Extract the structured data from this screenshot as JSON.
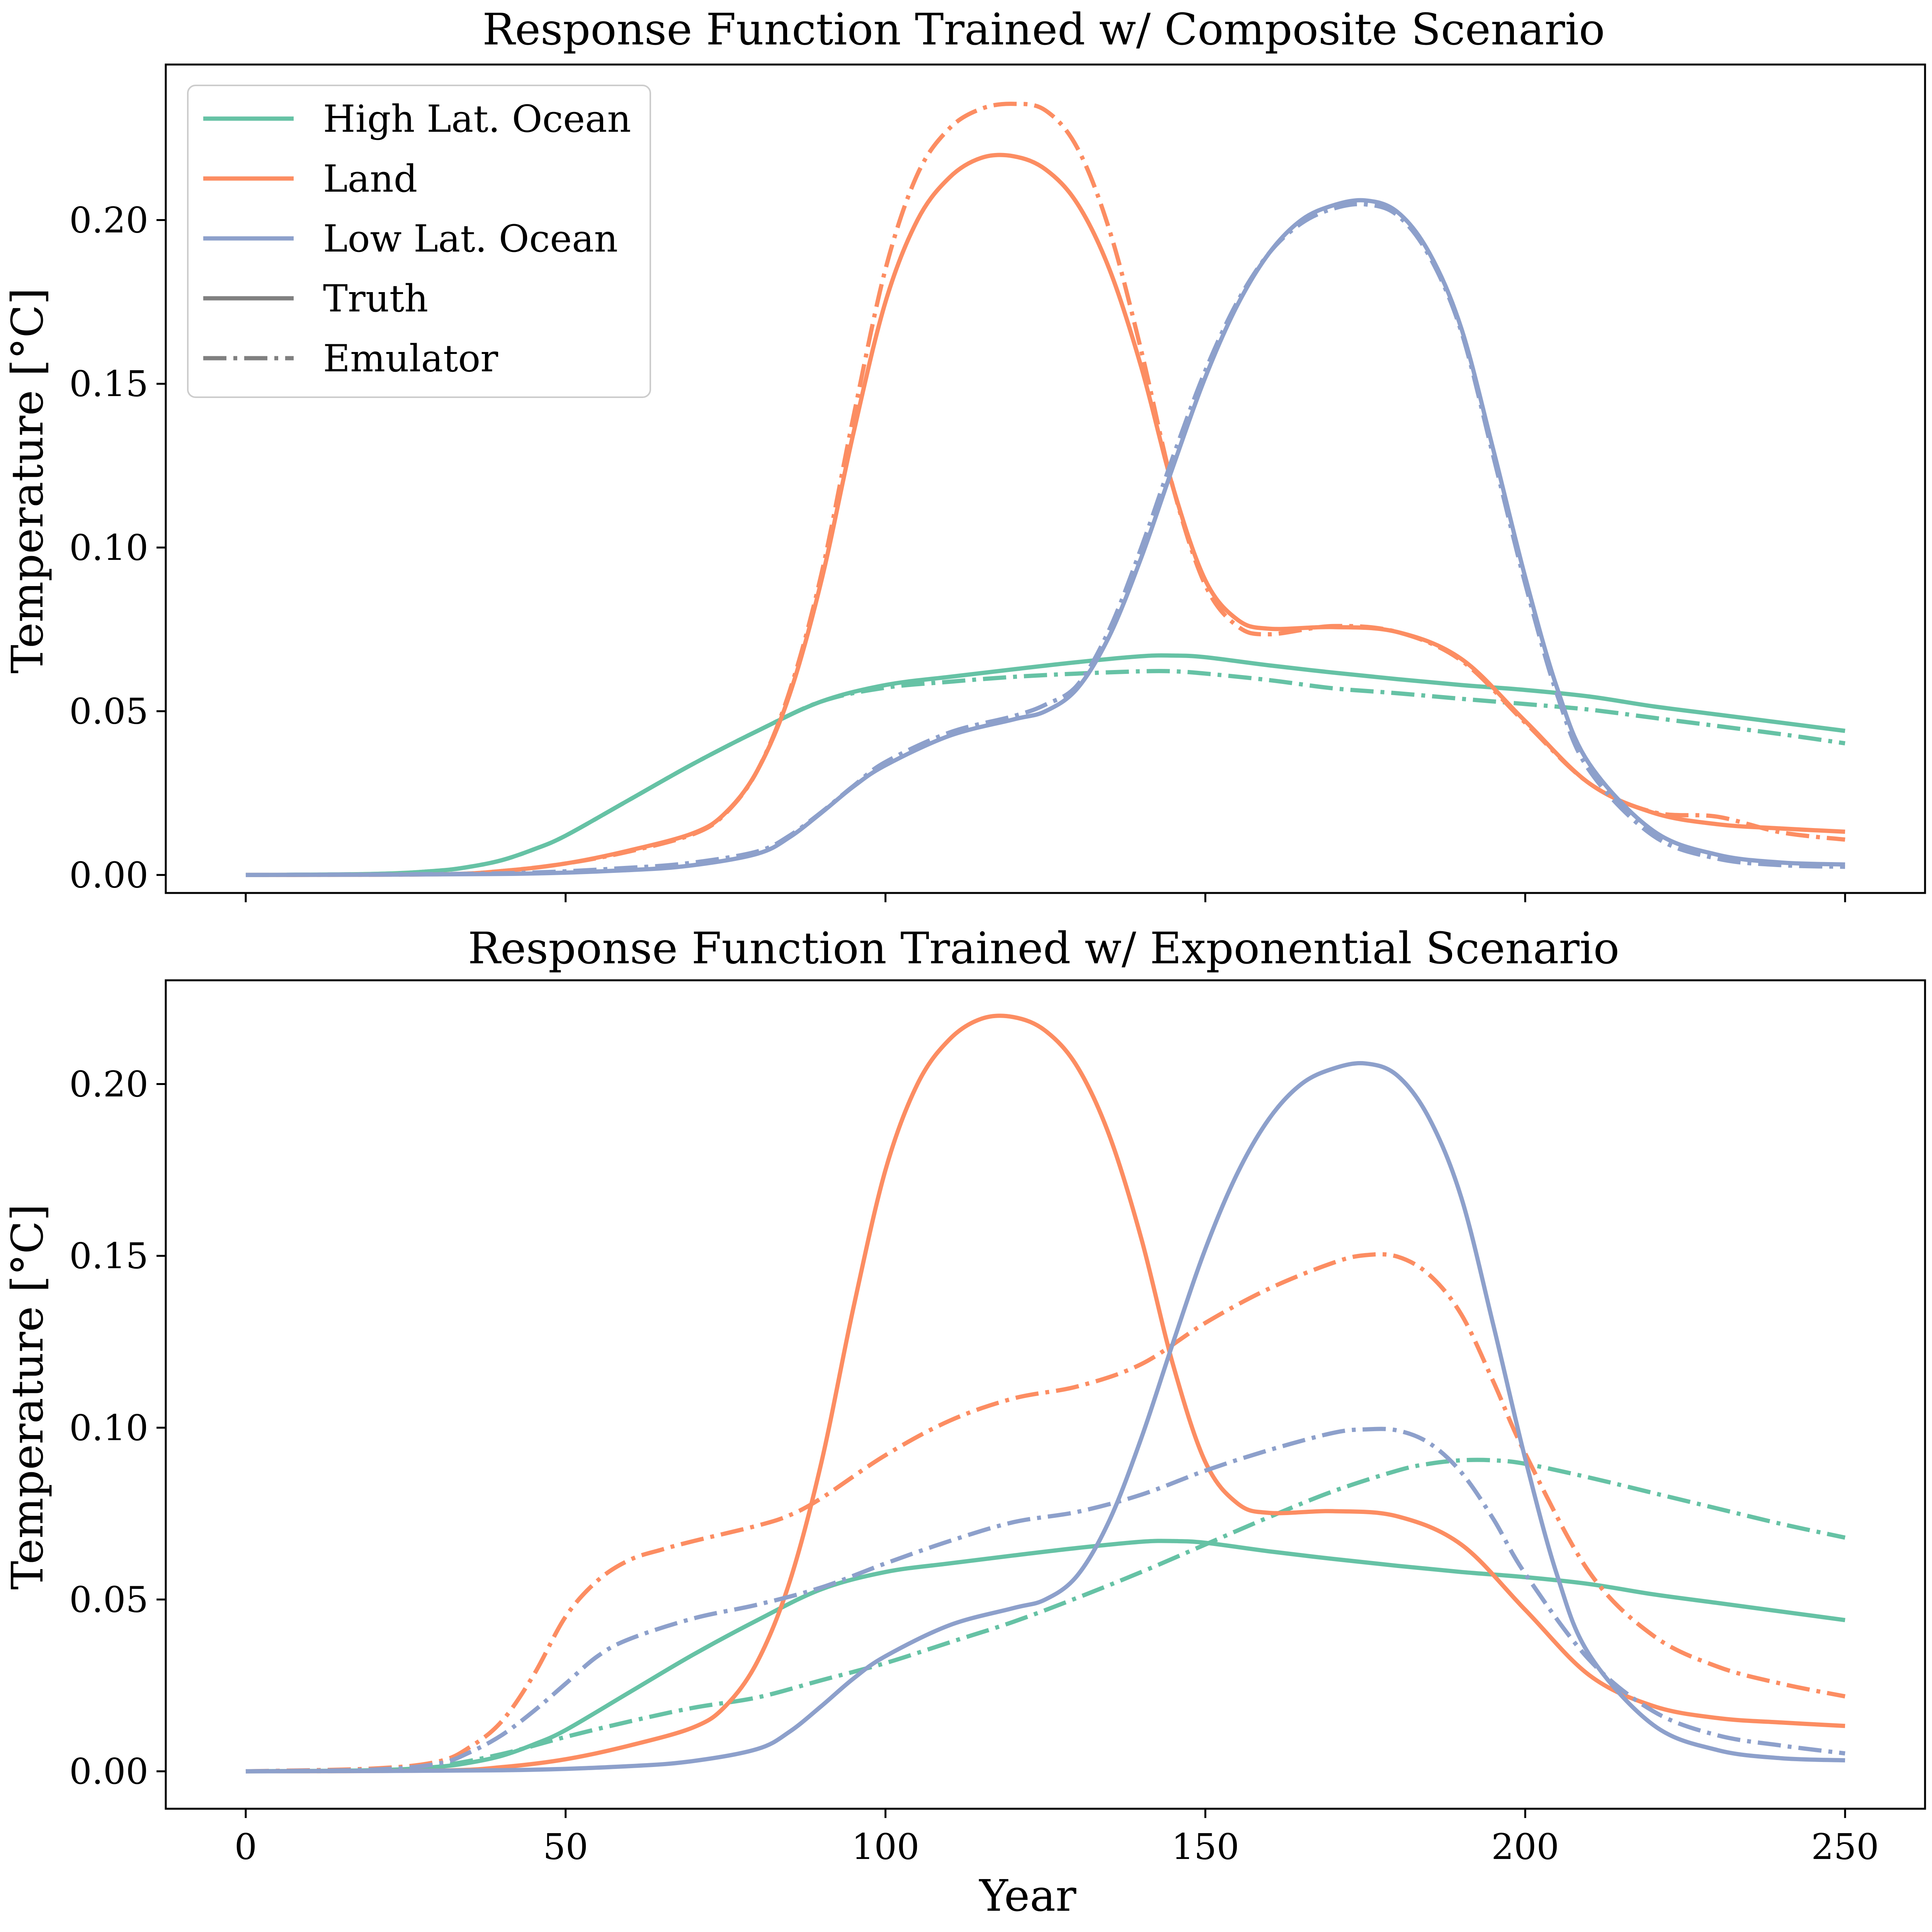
{
  "colors": {
    "high_lat_ocean": "#66c2a5",
    "land": "#fc8d62",
    "low_lat_ocean": "#8da0cb",
    "style_key": "#808080"
  },
  "legend": {
    "location": "upper left of top panel",
    "items": [
      {
        "label": "High Lat. Ocean",
        "color": "#66c2a5",
        "style": "solid"
      },
      {
        "label": "Land",
        "color": "#fc8d62",
        "style": "solid"
      },
      {
        "label": "Low Lat. Ocean",
        "color": "#8da0cb",
        "style": "solid"
      },
      {
        "label": "Truth",
        "color": "#808080",
        "style": "solid"
      },
      {
        "label": "Emulator",
        "color": "#808080",
        "style": "dashdot"
      }
    ]
  },
  "chart_data": [
    {
      "type": "line",
      "title": "Response Function Trained w/ Composite Scenario",
      "xlabel": "",
      "ylabel": "Temperature [°C]",
      "xlim": [
        -12.5,
        262.5
      ],
      "ylim": [
        -0.0055,
        0.2475
      ],
      "xticks": [
        0,
        50,
        100,
        150,
        200,
        250
      ],
      "xtick_labels": [
        "",
        "",
        "",
        "",
        "",
        ""
      ],
      "yticks": [
        0.0,
        0.05,
        0.1,
        0.15,
        0.2
      ],
      "ytick_labels": [
        "0.00",
        "0.05",
        "0.10",
        "0.15",
        "0.20"
      ],
      "grid": false,
      "legend": "upper left",
      "series": [
        {
          "name": "High Lat. Ocean",
          "kind": "Truth",
          "color": "#66c2a5",
          "dash": "solid",
          "x": [
            0,
            20,
            30,
            35,
            40,
            45,
            50,
            60,
            70,
            80,
            90,
            100,
            110,
            120,
            130,
            140,
            145,
            150,
            160,
            170,
            180,
            190,
            200,
            210,
            220,
            230,
            240,
            250
          ],
          "y": [
            0,
            0.0003,
            0.0013,
            0.0025,
            0.0045,
            0.0078,
            0.012,
            0.023,
            0.034,
            0.044,
            0.053,
            0.058,
            0.0605,
            0.0628,
            0.065,
            0.0668,
            0.067,
            0.0665,
            0.064,
            0.0618,
            0.0598,
            0.058,
            0.0565,
            0.0545,
            0.0515,
            0.049,
            0.0465,
            0.044
          ]
        },
        {
          "name": "High Lat. Ocean",
          "kind": "Emulator",
          "color": "#66c2a5",
          "dash": "dashdot",
          "x": [
            0,
            20,
            30,
            35,
            40,
            45,
            50,
            60,
            70,
            80,
            90,
            100,
            110,
            120,
            130,
            140,
            145,
            150,
            160,
            170,
            180,
            190,
            200,
            210,
            220,
            230,
            240,
            250
          ],
          "y": [
            0,
            0.0003,
            0.0013,
            0.0025,
            0.0045,
            0.0078,
            0.012,
            0.023,
            0.034,
            0.044,
            0.053,
            0.0572,
            0.059,
            0.0605,
            0.0615,
            0.0622,
            0.0622,
            0.0615,
            0.0595,
            0.057,
            0.0555,
            0.0538,
            0.0522,
            0.0505,
            0.048,
            0.0455,
            0.043,
            0.0402
          ]
        },
        {
          "name": "Land",
          "kind": "Truth",
          "color": "#fc8d62",
          "dash": "solid",
          "x": [
            0,
            30,
            40,
            50,
            60,
            70,
            75,
            80,
            85,
            90,
            95,
            100,
            105,
            110,
            115,
            120,
            125,
            130,
            135,
            140,
            145,
            150,
            155,
            160,
            170,
            180,
            190,
            200,
            210,
            220,
            230,
            240,
            250
          ],
          "y": [
            0,
            0.0002,
            0.0012,
            0.0035,
            0.0075,
            0.0128,
            0.019,
            0.032,
            0.055,
            0.09,
            0.135,
            0.175,
            0.2,
            0.213,
            0.219,
            0.2195,
            0.2155,
            0.205,
            0.185,
            0.155,
            0.118,
            0.09,
            0.078,
            0.0752,
            0.0757,
            0.0742,
            0.066,
            0.047,
            0.028,
            0.019,
            0.0155,
            0.0142,
            0.0132
          ]
        },
        {
          "name": "Land",
          "kind": "Emulator",
          "color": "#fc8d62",
          "dash": "dashdot",
          "x": [
            0,
            30,
            40,
            50,
            60,
            70,
            75,
            80,
            85,
            90,
            95,
            100,
            105,
            110,
            115,
            120,
            125,
            130,
            135,
            140,
            145,
            150,
            155,
            160,
            170,
            180,
            190,
            200,
            210,
            220,
            230,
            240,
            250
          ],
          "y": [
            0,
            0.0002,
            0.0012,
            0.0035,
            0.0072,
            0.0125,
            0.0188,
            0.032,
            0.056,
            0.092,
            0.14,
            0.185,
            0.214,
            0.228,
            0.234,
            0.2355,
            0.2335,
            0.222,
            0.197,
            0.16,
            0.118,
            0.0885,
            0.076,
            0.0735,
            0.076,
            0.0742,
            0.0655,
            0.0465,
            0.028,
            0.0192,
            0.0178,
            0.013,
            0.0108
          ]
        },
        {
          "name": "Low Lat. Ocean",
          "kind": "Truth",
          "color": "#8da0cb",
          "dash": "solid",
          "x": [
            0,
            40,
            60,
            70,
            80,
            85,
            90,
            95,
            100,
            110,
            120,
            125,
            130,
            135,
            140,
            145,
            150,
            155,
            160,
            165,
            170,
            175,
            180,
            185,
            190,
            195,
            200,
            205,
            210,
            220,
            230,
            240,
            250
          ],
          "y": [
            0,
            0.0003,
            0.0015,
            0.003,
            0.0065,
            0.0115,
            0.019,
            0.027,
            0.0335,
            0.0425,
            0.0475,
            0.05,
            0.057,
            0.073,
            0.097,
            0.125,
            0.152,
            0.174,
            0.19,
            0.2,
            0.2045,
            0.206,
            0.2025,
            0.19,
            0.167,
            0.13,
            0.091,
            0.057,
            0.034,
            0.0135,
            0.0062,
            0.0038,
            0.0032
          ]
        },
        {
          "name": "Low Lat. Ocean",
          "kind": "Emulator",
          "color": "#8da0cb",
          "dash": "dashdot",
          "x": [
            0,
            40,
            60,
            70,
            80,
            85,
            90,
            95,
            100,
            110,
            120,
            125,
            130,
            135,
            140,
            145,
            150,
            155,
            160,
            165,
            170,
            175,
            180,
            185,
            190,
            195,
            200,
            205,
            210,
            220,
            230,
            240,
            250
          ],
          "y": [
            0,
            0.0005,
            0.0022,
            0.0038,
            0.0072,
            0.012,
            0.0192,
            0.0272,
            0.0345,
            0.0435,
            0.0485,
            0.052,
            0.058,
            0.075,
            0.1,
            0.128,
            0.154,
            0.175,
            0.19,
            0.199,
            0.2035,
            0.2048,
            0.2015,
            0.189,
            0.166,
            0.128,
            0.089,
            0.055,
            0.032,
            0.012,
            0.005,
            0.003,
            0.0025
          ]
        }
      ]
    },
    {
      "type": "line",
      "title": "Response Function Trained w/ Exponential Scenario",
      "xlabel": "Year",
      "ylabel": "Temperature [°C]",
      "xlim": [
        -12.5,
        262.5
      ],
      "ylim": [
        -0.0109,
        0.2302
      ],
      "xticks": [
        0,
        50,
        100,
        150,
        200,
        250
      ],
      "xtick_labels": [
        "0",
        "50",
        "100",
        "150",
        "200",
        "250"
      ],
      "yticks": [
        0.0,
        0.05,
        0.1,
        0.15,
        0.2
      ],
      "ytick_labels": [
        "0.00",
        "0.05",
        "0.10",
        "0.15",
        "0.20"
      ],
      "grid": false,
      "series": [
        {
          "name": "High Lat. Ocean",
          "kind": "Truth",
          "color": "#66c2a5",
          "dash": "solid",
          "x": [
            0,
            20,
            30,
            35,
            40,
            45,
            50,
            60,
            70,
            80,
            90,
            100,
            110,
            120,
            130,
            140,
            145,
            150,
            160,
            170,
            180,
            190,
            200,
            210,
            220,
            230,
            240,
            250
          ],
          "y": [
            0,
            0.0003,
            0.0013,
            0.0025,
            0.0045,
            0.0078,
            0.012,
            0.023,
            0.034,
            0.044,
            0.053,
            0.058,
            0.0605,
            0.0628,
            0.065,
            0.0668,
            0.067,
            0.0665,
            0.064,
            0.0618,
            0.0598,
            0.058,
            0.0565,
            0.0545,
            0.0515,
            0.049,
            0.0465,
            0.044
          ]
        },
        {
          "name": "High Lat. Ocean",
          "kind": "Emulator",
          "color": "#66c2a5",
          "dash": "dashdot",
          "x": [
            0,
            20,
            30,
            40,
            50,
            60,
            70,
            80,
            90,
            100,
            110,
            120,
            130,
            140,
            150,
            160,
            170,
            180,
            185,
            190,
            195,
            200,
            210,
            220,
            230,
            240,
            250
          ],
          "y": [
            0,
            0.0002,
            0.0015,
            0.005,
            0.01,
            0.0145,
            0.0185,
            0.0215,
            0.0265,
            0.0315,
            0.0375,
            0.0435,
            0.0505,
            0.058,
            0.066,
            0.074,
            0.0815,
            0.0875,
            0.0895,
            0.0905,
            0.0905,
            0.0895,
            0.0855,
            0.081,
            0.0765,
            0.072,
            0.068
          ]
        },
        {
          "name": "Land",
          "kind": "Truth",
          "color": "#fc8d62",
          "dash": "solid",
          "x": [
            0,
            30,
            40,
            50,
            60,
            70,
            75,
            80,
            85,
            90,
            95,
            100,
            105,
            110,
            115,
            120,
            125,
            130,
            135,
            140,
            145,
            150,
            155,
            160,
            170,
            180,
            190,
            200,
            210,
            220,
            230,
            240,
            250
          ],
          "y": [
            0,
            0.0002,
            0.0012,
            0.0035,
            0.0075,
            0.0128,
            0.019,
            0.032,
            0.055,
            0.09,
            0.135,
            0.175,
            0.2,
            0.213,
            0.219,
            0.2195,
            0.2155,
            0.205,
            0.185,
            0.155,
            0.118,
            0.09,
            0.078,
            0.0752,
            0.0757,
            0.0742,
            0.066,
            0.047,
            0.028,
            0.019,
            0.0155,
            0.0142,
            0.0132
          ]
        },
        {
          "name": "Land",
          "kind": "Emulator",
          "color": "#fc8d62",
          "dash": "dashdot",
          "x": [
            0,
            20,
            30,
            35,
            40,
            45,
            50,
            55,
            60,
            65,
            70,
            80,
            85,
            90,
            100,
            110,
            120,
            130,
            140,
            150,
            160,
            170,
            175,
            180,
            185,
            190,
            195,
            200,
            210,
            220,
            230,
            240,
            250
          ],
          "y": [
            0,
            0.0008,
            0.0028,
            0.007,
            0.0145,
            0.028,
            0.045,
            0.0555,
            0.0615,
            0.0645,
            0.067,
            0.0715,
            0.0745,
            0.0795,
            0.092,
            0.102,
            0.1085,
            0.112,
            0.1185,
            0.1305,
            0.1405,
            0.148,
            0.1502,
            0.1498,
            0.1445,
            0.133,
            0.1135,
            0.0925,
            0.058,
            0.0395,
            0.0305,
            0.0255,
            0.0218
          ]
        },
        {
          "name": "Low Lat. Ocean",
          "kind": "Truth",
          "color": "#8da0cb",
          "dash": "solid",
          "x": [
            0,
            40,
            60,
            70,
            80,
            85,
            90,
            95,
            100,
            110,
            120,
            125,
            130,
            135,
            140,
            145,
            150,
            155,
            160,
            165,
            170,
            175,
            180,
            185,
            190,
            195,
            200,
            205,
            210,
            220,
            230,
            240,
            250
          ],
          "y": [
            0,
            0.0003,
            0.0015,
            0.003,
            0.0065,
            0.0115,
            0.019,
            0.027,
            0.0335,
            0.0425,
            0.0475,
            0.05,
            0.057,
            0.073,
            0.097,
            0.125,
            0.152,
            0.174,
            0.19,
            0.2,
            0.2045,
            0.206,
            0.2025,
            0.19,
            0.167,
            0.13,
            0.091,
            0.057,
            0.034,
            0.0135,
            0.0062,
            0.0038,
            0.0032
          ]
        },
        {
          "name": "Low Lat. Ocean",
          "kind": "Emulator",
          "color": "#8da0cb",
          "dash": "dashdot",
          "x": [
            0,
            20,
            30,
            35,
            40,
            45,
            50,
            55,
            60,
            70,
            80,
            90,
            100,
            110,
            120,
            130,
            140,
            150,
            160,
            170,
            175,
            180,
            185,
            190,
            195,
            200,
            210,
            220,
            230,
            240,
            250
          ],
          "y": [
            0,
            0.0005,
            0.0022,
            0.0055,
            0.0105,
            0.0175,
            0.0255,
            0.0335,
            0.0385,
            0.0445,
            0.0485,
            0.0535,
            0.0605,
            0.067,
            0.0725,
            0.0755,
            0.0805,
            0.0875,
            0.0935,
            0.0985,
            0.0995,
            0.0992,
            0.0955,
            0.087,
            0.0735,
            0.0575,
            0.0325,
            0.0175,
            0.0105,
            0.0075,
            0.0052
          ]
        }
      ]
    }
  ]
}
